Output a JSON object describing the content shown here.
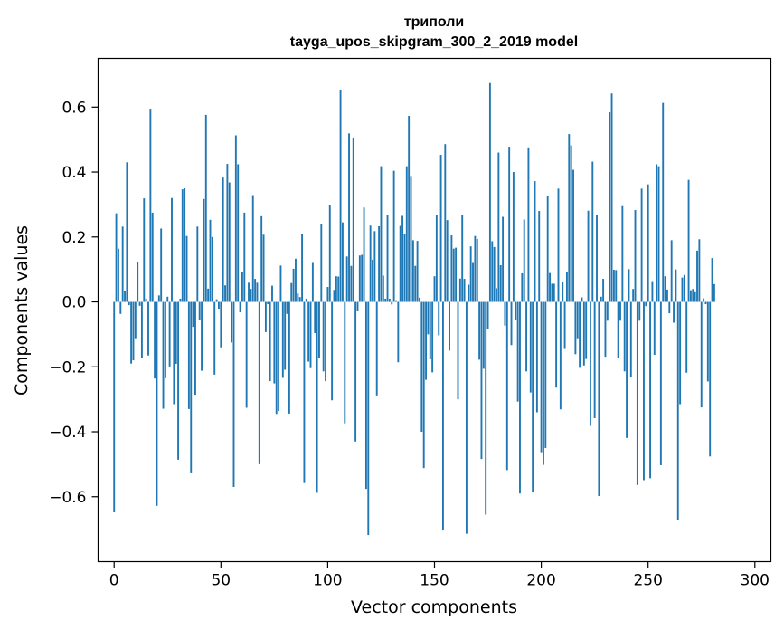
{
  "chart_data": {
    "type": "bar",
    "title": "триполи",
    "subtitle": "tayga_upos_skipgram_300_2_2019 model",
    "xlabel": "Vector components",
    "ylabel": "Components values",
    "xlim": [
      -7.5,
      307.5
    ],
    "ylim": [
      -0.8,
      0.75
    ],
    "xticks": [
      0,
      50,
      100,
      150,
      200,
      250,
      300
    ],
    "yticks": [
      -0.6,
      -0.4,
      -0.2,
      0.0,
      0.2,
      0.4,
      0.6
    ],
    "ytick_labels": [
      "−0.6",
      "−0.4",
      "−0.2",
      "0.0",
      "0.2",
      "0.4",
      "0.6"
    ],
    "bar_color": "#1f77b4",
    "grid": false,
    "values": [
      -0.648,
      0.273,
      0.164,
      -0.037,
      0.232,
      0.035,
      0.43,
      -0.01,
      -0.19,
      -0.18,
      -0.112,
      0.122,
      -0.012,
      -0.172,
      0.319,
      0.01,
      -0.165,
      0.595,
      0.275,
      -0.236,
      -0.628,
      0.02,
      0.226,
      -0.329,
      -0.235,
      0.016,
      -0.199,
      0.32,
      -0.315,
      -0.191,
      -0.486,
      0.01,
      0.347,
      0.35,
      0.203,
      -0.33,
      -0.528,
      -0.077,
      -0.286,
      0.232,
      -0.055,
      -0.212,
      0.317,
      0.576,
      0.041,
      0.253,
      0.2,
      -0.224,
      0.008,
      -0.021,
      -0.14,
      0.383,
      0.051,
      0.425,
      0.368,
      -0.125,
      -0.57,
      0.513,
      0.424,
      -0.032,
      0.091,
      0.275,
      -0.326,
      0.059,
      0.04,
      0.329,
      0.071,
      0.059,
      -0.5,
      0.264,
      0.207,
      -0.093,
      -0.007,
      -0.244,
      0.05,
      -0.251,
      -0.345,
      -0.336,
      0.112,
      -0.234,
      -0.209,
      -0.037,
      -0.344,
      0.058,
      0.102,
      0.133,
      0.026,
      0.015,
      0.209,
      -0.558,
      0.01,
      -0.184,
      -0.204,
      0.12,
      -0.096,
      -0.588,
      -0.172,
      0.241,
      -0.214,
      -0.244,
      0.046,
      0.298,
      -0.303,
      0.037,
      0.079,
      0.078,
      0.654,
      0.245,
      -0.374,
      0.14,
      0.519,
      0.111,
      0.505,
      -0.43,
      -0.029,
      0.143,
      0.145,
      0.291,
      -0.576,
      -0.718,
      0.235,
      0.13,
      0.218,
      -0.288,
      0.233,
      0.418,
      0.081,
      0.01,
      0.269,
      0.01,
      -0.008,
      0.404,
      0.005,
      -0.186,
      0.234,
      0.265,
      0.208,
      0.418,
      0.573,
      0.388,
      0.19,
      0.111,
      0.188,
      0.013,
      -0.4,
      -0.512,
      -0.24,
      -0.1,
      -0.177,
      -0.217,
      0.079,
      0.269,
      -0.103,
      0.453,
      -0.704,
      0.486,
      0.252,
      -0.15,
      0.205,
      0.164,
      0.167,
      -0.3,
      0.072,
      0.269,
      0.071,
      -0.714,
      0.053,
      0.171,
      0.12,
      0.203,
      0.194,
      -0.178,
      -0.484,
      -0.206,
      -0.655,
      -0.083,
      0.674,
      0.187,
      0.169,
      0.042,
      0.46,
      0.113,
      0.262,
      -0.073,
      -0.518,
      0.478,
      -0.133,
      0.4,
      -0.055,
      -0.307,
      -0.59,
      0.088,
      0.254,
      -0.214,
      0.476,
      -0.279,
      -0.587,
      0.372,
      -0.34,
      0.28,
      -0.463,
      -0.502,
      -0.45,
      0.327,
      0.089,
      0.056,
      0.056,
      -0.264,
      0.349,
      -0.331,
      0.062,
      -0.145,
      0.092,
      0.517,
      0.482,
      0.407,
      -0.161,
      -0.112,
      -0.203,
      0.014,
      -0.196,
      -0.176,
      0.281,
      -0.382,
      0.432,
      -0.358,
      0.269,
      -0.598,
      0.016,
      0.071,
      -0.169,
      -0.058,
      0.584,
      0.642,
      0.099,
      0.098,
      -0.174,
      -0.058,
      0.295,
      -0.214,
      -0.419,
      0.101,
      -0.232,
      0.04,
      0.283,
      -0.564,
      -0.058,
      0.349,
      -0.549,
      -0.013,
      0.362,
      -0.543,
      0.064,
      -0.163,
      0.424,
      0.418,
      -0.503,
      0.613,
      0.079,
      0.038,
      -0.035,
      0.19,
      -0.064,
      0.1,
      -0.671,
      -0.315,
      0.075,
      0.083,
      -0.218,
      0.376,
      0.036,
      0.04,
      0.03,
      0.158,
      0.193,
      -0.325,
      0.011,
      -0.007,
      -0.245,
      -0.476,
      0.135,
      0.055
    ]
  }
}
